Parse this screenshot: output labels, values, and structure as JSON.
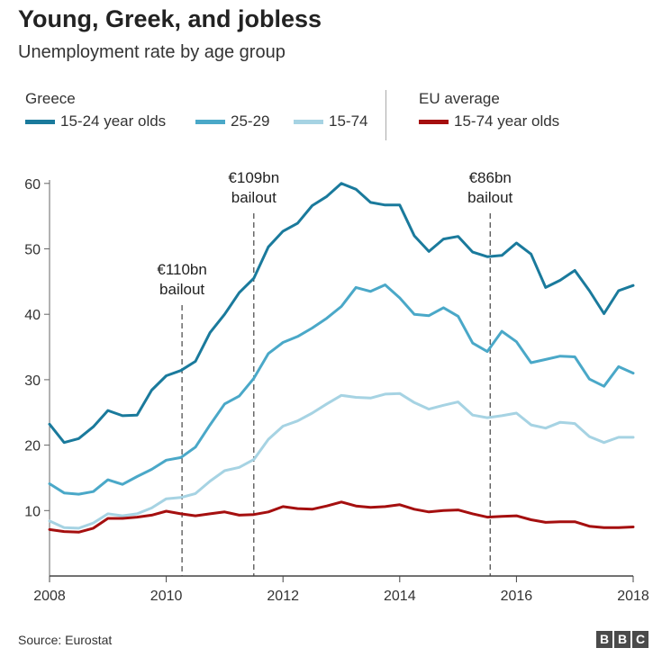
{
  "title": "Young, Greek, and jobless",
  "subtitle": "Unemployment rate by age group",
  "legend": {
    "greece_label": "Greece",
    "eu_label": "EU average",
    "items": [
      {
        "label": "15-24 year olds",
        "color": "#1a7a9c"
      },
      {
        "label": "25-29",
        "color": "#4aa8c8"
      },
      {
        "label": "15-74",
        "color": "#a6d3e3"
      },
      {
        "label": "15-74 year olds",
        "color": "#a50f0f"
      }
    ]
  },
  "source": "Source: Eurostat",
  "logo": [
    "B",
    "B",
    "C"
  ],
  "chart_data": {
    "type": "line",
    "xlim": [
      2008,
      2018
    ],
    "ylim": [
      0,
      60
    ],
    "xticks": [
      2008,
      2010,
      2012,
      2014,
      2016,
      2018
    ],
    "xtick_labels": [
      "2008",
      "2010",
      "2012",
      "2014",
      "2016",
      "2018"
    ],
    "yticks": [
      10,
      20,
      30,
      40,
      50,
      60
    ],
    "ytick_labels": [
      "10",
      "20",
      "30",
      "40",
      "50",
      "60"
    ],
    "grid": false,
    "annotations": [
      {
        "x": 2010.27,
        "line1": "€110bn",
        "line2": "bailout"
      },
      {
        "x": 2011.5,
        "line1": "€109bn",
        "line2": "bailout"
      },
      {
        "x": 2015.55,
        "line1": "€86bn",
        "line2": "bailout"
      }
    ],
    "x": [
      2008.0,
      2008.25,
      2008.5,
      2008.75,
      2009.0,
      2009.25,
      2009.5,
      2009.75,
      2010.0,
      2010.25,
      2010.5,
      2010.75,
      2011.0,
      2011.25,
      2011.5,
      2011.75,
      2012.0,
      2012.25,
      2012.5,
      2012.75,
      2013.0,
      2013.25,
      2013.5,
      2013.75,
      2014.0,
      2014.25,
      2014.5,
      2014.75,
      2015.0,
      2015.25,
      2015.5,
      2015.75,
      2016.0,
      2016.25,
      2016.5,
      2016.75,
      2017.0,
      2017.25,
      2017.5,
      2017.75,
      2018.0
    ],
    "series": [
      {
        "name": "15-24 year olds",
        "color": "#1a7a9c",
        "values": [
          23.2,
          20.4,
          21.0,
          22.8,
          25.3,
          24.5,
          24.6,
          28.4,
          30.6,
          31.4,
          32.8,
          37.2,
          40.0,
          43.3,
          45.5,
          50.3,
          52.7,
          53.9,
          56.6,
          58.0,
          60.0,
          59.1,
          57.1,
          56.7,
          56.7,
          52.0,
          49.6,
          51.5,
          51.9,
          49.5,
          48.8,
          49.0,
          50.9,
          49.2,
          44.1,
          45.2,
          46.7,
          43.6,
          40.1,
          43.6,
          44.4
        ]
      },
      {
        "name": "25-29",
        "color": "#4aa8c8",
        "values": [
          14.1,
          12.7,
          12.5,
          12.9,
          14.7,
          14.0,
          15.2,
          16.3,
          17.7,
          18.1,
          19.7,
          23.1,
          26.3,
          27.5,
          30.2,
          34.0,
          35.7,
          36.6,
          37.9,
          39.4,
          41.2,
          44.1,
          43.5,
          44.5,
          42.5,
          40.0,
          39.8,
          41.0,
          39.7,
          35.6,
          34.3,
          37.4,
          35.8,
          32.6,
          33.1,
          33.6,
          33.5,
          30.1,
          29.0,
          32.0,
          31.0
        ]
      },
      {
        "name": "15-74",
        "color": "#a6d3e3",
        "values": [
          8.4,
          7.4,
          7.3,
          8.1,
          9.5,
          9.2,
          9.5,
          10.4,
          11.8,
          12.0,
          12.6,
          14.5,
          16.1,
          16.6,
          17.8,
          20.9,
          22.9,
          23.7,
          24.9,
          26.3,
          27.6,
          27.3,
          27.2,
          27.8,
          27.9,
          26.5,
          25.5,
          26.1,
          26.6,
          24.6,
          24.2,
          24.5,
          24.9,
          23.1,
          22.6,
          23.5,
          23.3,
          21.3,
          20.4,
          21.2,
          21.2
        ]
      },
      {
        "name": "15-74 year olds",
        "color": "#a50f0f",
        "values": [
          7.1,
          6.8,
          6.7,
          7.3,
          8.8,
          8.8,
          9.0,
          9.3,
          9.9,
          9.5,
          9.2,
          9.5,
          9.8,
          9.3,
          9.4,
          9.8,
          10.6,
          10.3,
          10.2,
          10.7,
          11.3,
          10.7,
          10.5,
          10.6,
          10.9,
          10.2,
          9.8,
          10.0,
          10.1,
          9.5,
          9.0,
          9.1,
          9.2,
          8.6,
          8.2,
          8.3,
          8.3,
          7.6,
          7.4,
          7.4,
          7.5
        ]
      }
    ]
  }
}
